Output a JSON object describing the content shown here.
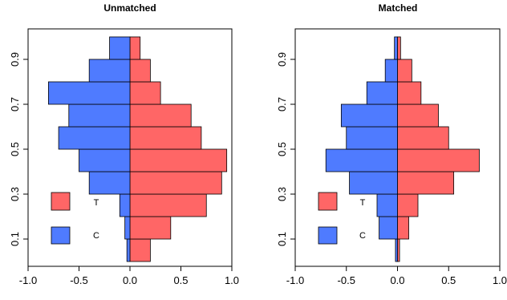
{
  "colors": {
    "treated": "#ff6666",
    "control": "#4f7bff",
    "edge": "#000000"
  },
  "chart_data": [
    {
      "type": "bar",
      "orientation": "horizontal-back-to-back",
      "title": "Unmatched",
      "xlim": [
        -1.0,
        1.0
      ],
      "x_ticks": [
        -1.0,
        -0.5,
        0.0,
        0.5,
        1.0
      ],
      "x_tick_labels": [
        "-1.0",
        "-0.5",
        "0.0",
        "0.5",
        "1.0"
      ],
      "y_ticks": [
        0.1,
        0.3,
        0.5,
        0.7,
        0.9
      ],
      "y_tick_labels": [
        "0.1",
        "0.3",
        "0.5",
        "0.7",
        "0.9"
      ],
      "bins": [
        0.05,
        0.15,
        0.25,
        0.35,
        0.45,
        0.55,
        0.65,
        0.75,
        0.85,
        0.95
      ],
      "bin_width": 0.1,
      "series": [
        {
          "values": [
            0.2,
            0.4,
            0.75,
            0.9,
            0.95,
            0.7,
            0.6,
            0.3,
            0.2,
            0.1
          ]
        },
        {
          "values": [
            -0.03,
            -0.05,
            -0.1,
            -0.4,
            -0.5,
            -0.7,
            -0.6,
            -0.8,
            -0.4,
            -0.2
          ]
        }
      ],
      "legend": [
        {
          "label": "T"
        },
        {
          "label": "C"
        }
      ]
    },
    {
      "type": "bar",
      "orientation": "horizontal-back-to-back",
      "title": "Matched",
      "xlim": [
        -1.0,
        1.0
      ],
      "x_ticks": [
        -1.0,
        -0.5,
        0.0,
        0.5,
        1.0
      ],
      "x_tick_labels": [
        "-1.0",
        "-0.5",
        "0.0",
        "0.5",
        "1.0"
      ],
      "y_ticks": [
        0.1,
        0.3,
        0.5,
        0.7,
        0.9
      ],
      "y_tick_labels": [
        "0.1",
        "0.3",
        "0.5",
        "0.7",
        "0.9"
      ],
      "bins": [
        0.05,
        0.15,
        0.25,
        0.35,
        0.45,
        0.55,
        0.65,
        0.75,
        0.85,
        0.95
      ],
      "bin_width": 0.1,
      "series": [
        {
          "values": [
            0.02,
            0.11,
            0.2,
            0.55,
            0.8,
            0.5,
            0.4,
            0.23,
            0.14,
            0.03
          ]
        },
        {
          "values": [
            -0.02,
            -0.18,
            -0.2,
            -0.47,
            -0.7,
            -0.5,
            -0.55,
            -0.3,
            -0.12,
            -0.03
          ]
        }
      ],
      "legend": [
        {
          "label": "T"
        },
        {
          "label": "C"
        }
      ]
    }
  ]
}
